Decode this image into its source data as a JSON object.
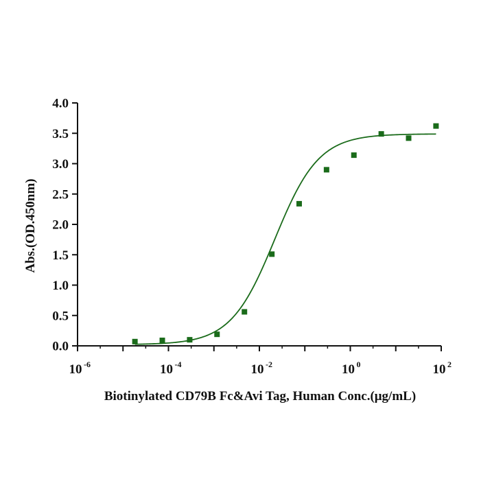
{
  "chart_data": {
    "type": "scatter",
    "title": "",
    "xlabel": "Biotinylated CD79B Fc&Avi Tag, Human Conc.(μg/mL)",
    "ylabel": "Abs.(OD.450nm)",
    "x_scale": "log10",
    "xlim": [
      1e-06,
      100
    ],
    "ylim": [
      0,
      4.0
    ],
    "x_ticks": [
      {
        "value": 1e-06,
        "base": "10",
        "exp": "-6"
      },
      {
        "value": 0.0001,
        "base": "10",
        "exp": "-4"
      },
      {
        "value": 0.01,
        "base": "10",
        "exp": "-2"
      },
      {
        "value": 1,
        "base": "10",
        "exp": "0"
      },
      {
        "value": 100,
        "base": "10",
        "exp": "2"
      }
    ],
    "y_ticks": [
      "0.0",
      "0.5",
      "1.0",
      "1.5",
      "2.0",
      "2.5",
      "3.0",
      "3.5",
      "4.0"
    ],
    "grid": false,
    "legend": "none",
    "color": "#1a6b1a",
    "series": [
      {
        "points": [
          {
            "x": 1.83e-05,
            "y": 0.07
          },
          {
            "x": 7.32e-05,
            "y": 0.09
          },
          {
            "x": 0.000293,
            "y": 0.1
          },
          {
            "x": 0.00117,
            "y": 0.19
          },
          {
            "x": 0.00469,
            "y": 0.56
          },
          {
            "x": 0.0188,
            "y": 1.51
          },
          {
            "x": 0.075,
            "y": 2.34
          },
          {
            "x": 0.3,
            "y": 2.9
          },
          {
            "x": 1.2,
            "y": 3.14
          },
          {
            "x": 4.8,
            "y": 3.49
          },
          {
            "x": 19.2,
            "y": 3.42
          },
          {
            "x": 76.8,
            "y": 3.62
          }
        ],
        "fit": {
          "model": "4PL",
          "bottom": 0.02,
          "top": 3.49,
          "ec50": 0.0218,
          "hill": 0.9,
          "x_range": [
            1.83e-05,
            76.8
          ]
        }
      }
    ]
  }
}
